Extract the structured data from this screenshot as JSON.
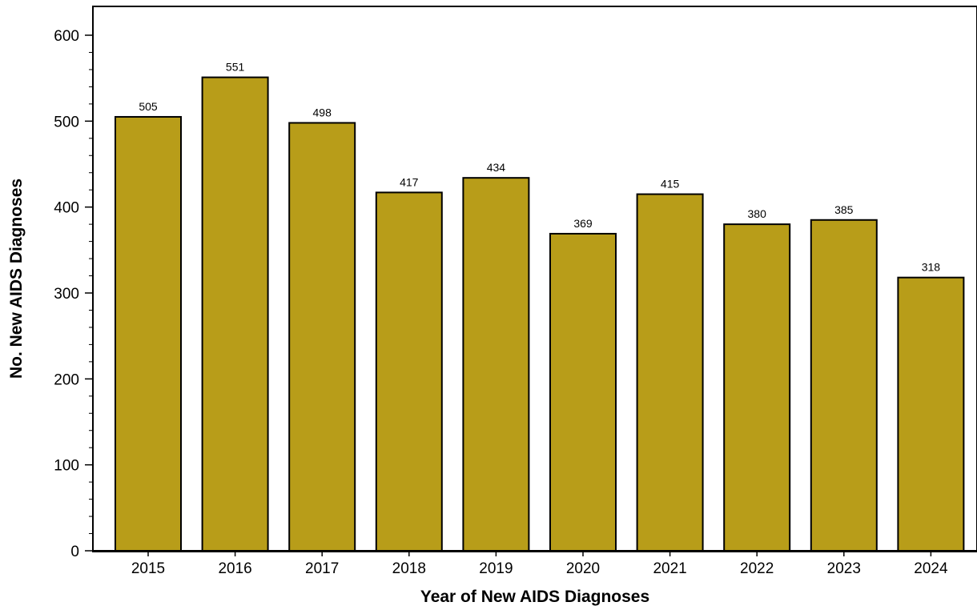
{
  "chart_data": {
    "type": "bar",
    "categories": [
      "2015",
      "2016",
      "2017",
      "2018",
      "2019",
      "2020",
      "2021",
      "2022",
      "2023",
      "2024"
    ],
    "values": [
      505,
      551,
      498,
      417,
      434,
      369,
      415,
      380,
      385,
      318
    ],
    "data_labels": [
      "505",
      "551",
      "498",
      "417",
      "434",
      "369",
      "415",
      "380",
      "385",
      "318"
    ],
    "title": "",
    "xlabel": "Year of New AIDS Diagnoses",
    "ylabel": "No. New AIDS Diagnoses",
    "ylim": [
      0,
      600
    ],
    "yticks": [
      0,
      100,
      200,
      300,
      400,
      500,
      600
    ],
    "ytick_labels": [
      "0",
      "100",
      "200",
      "300",
      "400",
      "500",
      "600"
    ],
    "minor_ytick_step": 20,
    "grid": false,
    "legend": "none",
    "colors": {
      "bar_fill": "#B89D19",
      "bar_stroke": "#000000",
      "axis": "#000000"
    }
  }
}
